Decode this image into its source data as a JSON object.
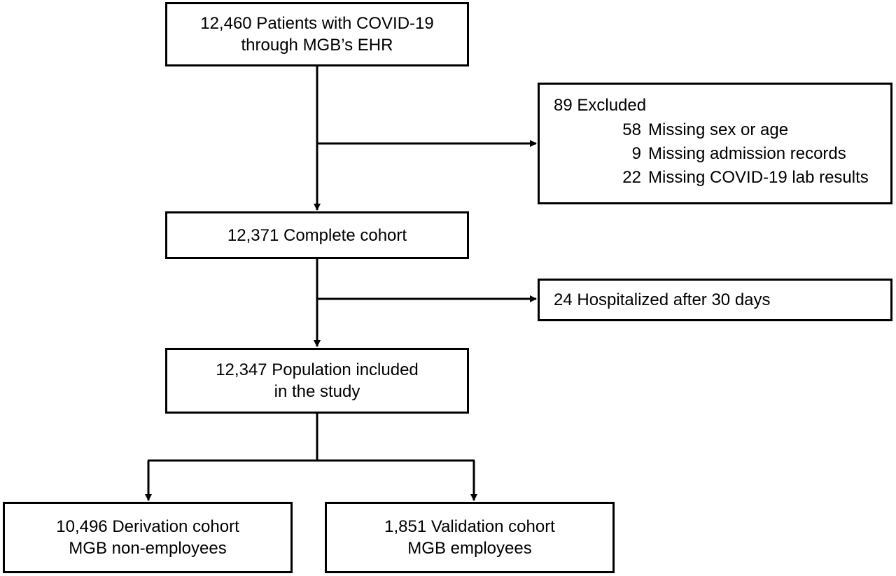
{
  "flowchart": {
    "start": {
      "line1": "12,460 Patients with COVID-19",
      "line2": "through MGB’s EHR"
    },
    "excluded": {
      "title": "89 Excluded",
      "items": [
        {
          "count": "58",
          "reason": "Missing sex or age"
        },
        {
          "count": "9",
          "reason": "Missing admission records"
        },
        {
          "count": "22",
          "reason": "Missing COVID-19 lab results"
        }
      ]
    },
    "complete": {
      "line1": "12,371 Complete cohort"
    },
    "hospitalized": {
      "line1": "24 Hospitalized after 30 days"
    },
    "population": {
      "line1": "12,347 Population included",
      "line2": "in the study"
    },
    "derivation": {
      "line1": "10,496 Derivation cohort",
      "line2": "MGB non-employees"
    },
    "validation": {
      "line1": "1,851 Validation cohort",
      "line2": "MGB employees"
    }
  }
}
